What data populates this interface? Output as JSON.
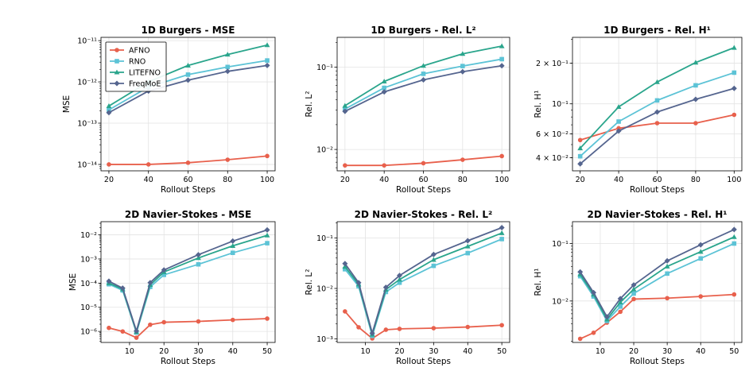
{
  "chart_data": [
    {
      "type": "line",
      "title": "1D Burgers - MSE",
      "xlabel": "Rollout Steps",
      "ylabel": "MSE",
      "yscale": "log",
      "ylim": [
        7e-15,
        1.2e-11
      ],
      "xlim": [
        16,
        104
      ],
      "xticks": [
        20,
        40,
        60,
        80,
        100
      ],
      "yticks": [
        1e-14,
        1e-13,
        1e-12,
        1e-11
      ],
      "ytick_labels": [
        "10⁻¹⁴",
        "10⁻¹³",
        "10⁻¹²",
        "10⁻¹¹"
      ],
      "grid": true,
      "legend": "top-left",
      "x": [
        20,
        40,
        60,
        80,
        100
      ],
      "series": [
        {
          "name": "AFNO",
          "values": [
            1e-14,
            1e-14,
            1.1e-14,
            1.3e-14,
            1.6e-14
          ]
        },
        {
          "name": "RNO",
          "values": [
            2.1e-13,
            7.5e-13,
            1.5e-12,
            2.3e-12,
            3.3e-12
          ]
        },
        {
          "name": "LITEFNO",
          "values": [
            2.6e-13,
            1e-12,
            2.5e-12,
            4.6e-12,
            7.8e-12
          ]
        },
        {
          "name": "FreqMoE",
          "values": [
            1.8e-13,
            6e-13,
            1.1e-12,
            1.8e-12,
            2.5e-12
          ]
        }
      ]
    },
    {
      "type": "line",
      "title": "1D Burgers - Rel. L²",
      "xlabel": "Rollout Steps",
      "ylabel": "Rel. L²",
      "yscale": "log",
      "ylim": [
        0.0055,
        0.23
      ],
      "xlim": [
        16,
        104
      ],
      "xticks": [
        20,
        40,
        60,
        80,
        100
      ],
      "yticks": [
        0.01,
        0.1
      ],
      "ytick_labels": [
        "10⁻²",
        "10⁻¹"
      ],
      "grid": true,
      "x": [
        20,
        40,
        60,
        80,
        100
      ],
      "series": [
        {
          "name": "AFNO",
          "values": [
            0.0064,
            0.0064,
            0.0068,
            0.0075,
            0.0083
          ]
        },
        {
          "name": "RNO",
          "values": [
            0.031,
            0.056,
            0.083,
            0.103,
            0.125
          ]
        },
        {
          "name": "LITEFNO",
          "values": [
            0.034,
            0.067,
            0.104,
            0.145,
            0.18
          ]
        },
        {
          "name": "FreqMoE",
          "values": [
            0.029,
            0.05,
            0.07,
            0.088,
            0.104
          ]
        }
      ]
    },
    {
      "type": "line",
      "title": "1D Burgers - Rel. H¹",
      "xlabel": "Rollout Steps",
      "ylabel": "Rel. H¹",
      "yscale": "log",
      "ylim": [
        0.032,
        0.31
      ],
      "xlim": [
        16,
        104
      ],
      "xticks": [
        20,
        40,
        60,
        80,
        100
      ],
      "yticks": [
        0.04,
        0.06,
        0.1,
        0.2
      ],
      "ytick_labels": [
        "4 × 10⁻²",
        "6 × 10⁻²",
        "10⁻¹",
        "2 × 10⁻¹"
      ],
      "grid": true,
      "x": [
        20,
        40,
        60,
        80,
        100
      ],
      "series": [
        {
          "name": "AFNO",
          "values": [
            0.054,
            0.066,
            0.072,
            0.072,
            0.083
          ]
        },
        {
          "name": "RNO",
          "values": [
            0.041,
            0.074,
            0.106,
            0.137,
            0.17
          ]
        },
        {
          "name": "LITEFNO",
          "values": [
            0.047,
            0.095,
            0.145,
            0.202,
            0.26
          ]
        },
        {
          "name": "FreqMoE",
          "values": [
            0.036,
            0.063,
            0.087,
            0.108,
            0.13
          ]
        }
      ]
    },
    {
      "type": "line",
      "title": "2D Navier-Stokes - MSE",
      "xlabel": "Rollout Steps",
      "ylabel": "MSE",
      "yscale": "log",
      "ylim": [
        3.5e-07,
        0.035
      ],
      "xlim": [
        1.7,
        52.3
      ],
      "xticks": [
        10,
        20,
        30,
        40,
        50
      ],
      "yticks": [
        1e-06,
        1e-05,
        0.0001,
        0.001,
        0.01
      ],
      "ytick_labels": [
        "10⁻⁶",
        "10⁻⁵",
        "10⁻⁴",
        "10⁻³",
        "10⁻²"
      ],
      "grid": true,
      "x": [
        4,
        8,
        12,
        16,
        20,
        30,
        40,
        50
      ],
      "series": [
        {
          "name": "AFNO",
          "values": [
            1.4e-06,
            1e-06,
            5.5e-07,
            1.9e-06,
            2.4e-06,
            2.6e-06,
            3e-06,
            3.4e-06
          ]
        },
        {
          "name": "RNO",
          "values": [
            9e-05,
            5e-05,
            9e-07,
            7e-05,
            0.00022,
            0.0006,
            0.0018,
            0.0045
          ]
        },
        {
          "name": "LITEFNO",
          "values": [
            0.0001,
            5.6e-05,
            9.5e-07,
            8.5e-05,
            0.00029,
            0.0011,
            0.0035,
            0.0095
          ]
        },
        {
          "name": "FreqMoE",
          "values": [
            0.00012,
            6.2e-05,
            1.05e-06,
            0.000105,
            0.00035,
            0.0015,
            0.0055,
            0.016
          ]
        }
      ]
    },
    {
      "type": "line",
      "title": "2D Navier-Stokes - Rel. L²",
      "xlabel": "Rollout Steps",
      "ylabel": "Rel. L²",
      "yscale": "log",
      "ylim": [
        0.00085,
        0.21
      ],
      "xlim": [
        1.7,
        52.3
      ],
      "xticks": [
        10,
        20,
        30,
        40,
        50
      ],
      "yticks": [
        0.001,
        0.01,
        0.1
      ],
      "ytick_labels": [
        "10⁻³",
        "10⁻²",
        "10⁻¹"
      ],
      "grid": true,
      "x": [
        4,
        8,
        12,
        16,
        20,
        30,
        40,
        50
      ],
      "series": [
        {
          "name": "AFNO",
          "values": [
            0.0035,
            0.0017,
            0.00102,
            0.00152,
            0.00158,
            0.00163,
            0.00172,
            0.00187
          ]
        },
        {
          "name": "RNO",
          "values": [
            0.024,
            0.011,
            0.00115,
            0.0085,
            0.013,
            0.028,
            0.05,
            0.095
          ]
        },
        {
          "name": "LITEFNO",
          "values": [
            0.027,
            0.012,
            0.00122,
            0.0095,
            0.015,
            0.037,
            0.068,
            0.125
          ]
        },
        {
          "name": "FreqMoE",
          "values": [
            0.031,
            0.013,
            0.0013,
            0.0105,
            0.018,
            0.047,
            0.088,
            0.16
          ]
        }
      ]
    },
    {
      "type": "line",
      "title": "2D Navier-Stokes - Rel. H¹",
      "xlabel": "Rollout Steps",
      "ylabel": "Rel. H¹",
      "yscale": "log",
      "ylim": [
        0.0019,
        0.24
      ],
      "xlim": [
        1.7,
        52.3
      ],
      "xticks": [
        10,
        20,
        30,
        40,
        50
      ],
      "yticks": [
        0.01,
        0.1
      ],
      "ytick_labels": [
        "10⁻²",
        "10⁻¹"
      ],
      "grid": true,
      "x": [
        4,
        8,
        12,
        16,
        20,
        30,
        40,
        50
      ],
      "series": [
        {
          "name": "AFNO",
          "values": [
            0.0022,
            0.0028,
            0.0042,
            0.0065,
            0.0108,
            0.0112,
            0.012,
            0.013
          ]
        },
        {
          "name": "RNO",
          "values": [
            0.027,
            0.012,
            0.0045,
            0.008,
            0.0135,
            0.03,
            0.055,
            0.1
          ]
        },
        {
          "name": "LITEFNO",
          "values": [
            0.029,
            0.013,
            0.0048,
            0.0095,
            0.016,
            0.04,
            0.072,
            0.13
          ]
        },
        {
          "name": "FreqMoE",
          "values": [
            0.032,
            0.014,
            0.0053,
            0.011,
            0.019,
            0.05,
            0.095,
            0.175
          ]
        }
      ]
    }
  ],
  "colors": {
    "AFNO": "#e8604c",
    "RNO": "#5cc3d6",
    "LITEFNO": "#2aa58c",
    "FreqMoE": "#55658f"
  },
  "markers": {
    "AFNO": "circle",
    "RNO": "square",
    "LITEFNO": "triangle",
    "FreqMoE": "diamond"
  }
}
